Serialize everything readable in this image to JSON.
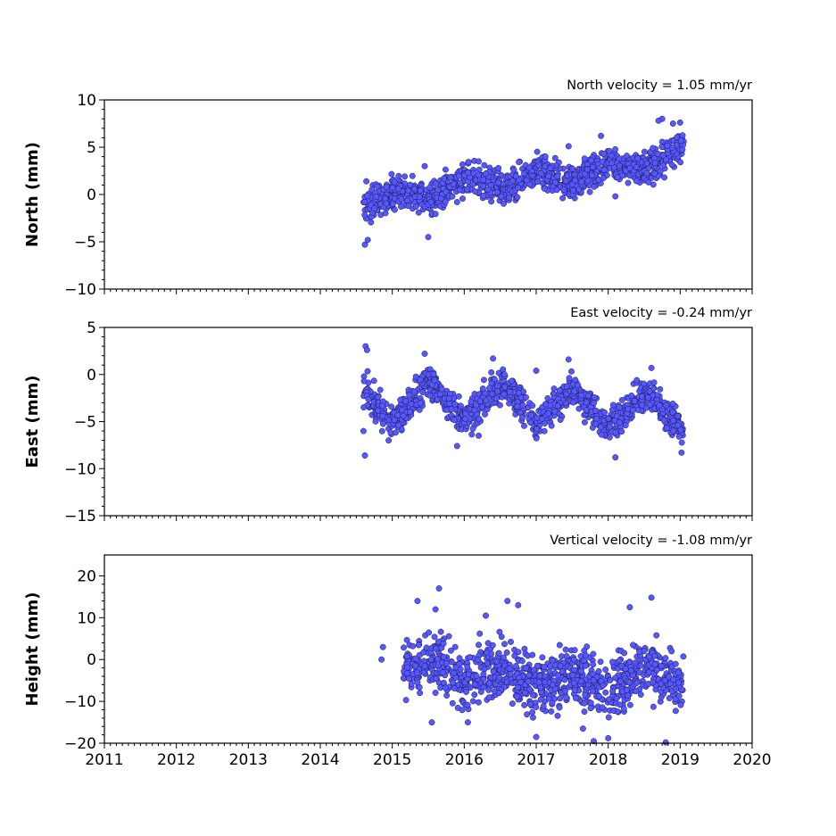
{
  "chart_data": [
    {
      "type": "scatter",
      "id": "north",
      "annotation": "North velocity = 1.05 mm/yr",
      "ylabel": "North (mm)",
      "xlim": [
        2011,
        2020
      ],
      "ylim": [
        -10,
        10
      ],
      "yticks": [
        -10,
        -5,
        0,
        5,
        10
      ],
      "ytick_labels": [
        "−10",
        "−5",
        "0",
        "5",
        "10"
      ],
      "velocity_mm_per_yr": 1.05,
      "color": "#5757ff",
      "segments": [
        {
          "x": [
            2014.6,
            2015.0
          ],
          "y": [
            -1.5,
            0.3
          ]
        },
        {
          "x": [
            2015.0,
            2015.6
          ],
          "y": [
            0.3,
            -0.3
          ]
        },
        {
          "x": [
            2015.6,
            2016.0
          ],
          "y": [
            -0.3,
            1.8
          ]
        },
        {
          "x": [
            2016.0,
            2016.6
          ],
          "y": [
            1.8,
            0.6
          ]
        },
        {
          "x": [
            2016.6,
            2017.0
          ],
          "y": [
            0.6,
            2.5
          ]
        },
        {
          "x": [
            2017.0,
            2017.5
          ],
          "y": [
            2.5,
            1.2
          ]
        },
        {
          "x": [
            2017.5,
            2018.0
          ],
          "y": [
            1.2,
            3.3
          ]
        },
        {
          "x": [
            2018.0,
            2018.5
          ],
          "y": [
            3.3,
            2.6
          ]
        },
        {
          "x": [
            2018.5,
            2019.05
          ],
          "y": [
            2.6,
            5.3
          ]
        }
      ],
      "noise": 1.1,
      "outliers": [
        {
          "x": 2014.62,
          "y": -5.3
        },
        {
          "x": 2014.66,
          "y": -4.8
        },
        {
          "x": 2014.64,
          "y": 1.4
        },
        {
          "x": 2015.5,
          "y": -4.5
        },
        {
          "x": 2015.45,
          "y": 3.0
        },
        {
          "x": 2017.45,
          "y": 5.1
        },
        {
          "x": 2017.9,
          "y": 6.2
        },
        {
          "x": 2018.1,
          "y": -0.2
        },
        {
          "x": 2018.75,
          "y": 8.0
        },
        {
          "x": 2018.7,
          "y": 7.8
        },
        {
          "x": 2018.9,
          "y": 7.5
        },
        {
          "x": 2019.0,
          "y": 7.6
        },
        {
          "x": 2018.78,
          "y": 1.8
        },
        {
          "x": 2016.2,
          "y": 3.5
        }
      ]
    },
    {
      "type": "scatter",
      "id": "east",
      "annotation": "East velocity = -0.24 mm/yr",
      "ylabel": "East (mm)",
      "xlim": [
        2011,
        2020
      ],
      "ylim": [
        -15,
        5
      ],
      "yticks": [
        -15,
        -10,
        -5,
        0,
        5
      ],
      "ytick_labels": [
        "−15",
        "−10",
        "−5",
        "0",
        "5"
      ],
      "velocity_mm_per_yr": -0.24,
      "color": "#5757ff",
      "segments": [
        {
          "x": [
            2014.6,
            2014.8
          ],
          "y": [
            -1.5,
            -3.5
          ]
        },
        {
          "x": [
            2014.8,
            2015.0
          ],
          "y": [
            -3.5,
            -5.0
          ]
        },
        {
          "x": [
            2015.0,
            2015.5
          ],
          "y": [
            -5.0,
            -0.8
          ]
        },
        {
          "x": [
            2015.5,
            2016.0
          ],
          "y": [
            -0.8,
            -5.0
          ]
        },
        {
          "x": [
            2016.0,
            2016.55
          ],
          "y": [
            -5.0,
            -0.8
          ]
        },
        {
          "x": [
            2016.55,
            2017.0
          ],
          "y": [
            -0.8,
            -5.2
          ]
        },
        {
          "x": [
            2017.0,
            2017.5
          ],
          "y": [
            -5.2,
            -1.5
          ]
        },
        {
          "x": [
            2017.5,
            2018.0
          ],
          "y": [
            -1.5,
            -5.5
          ]
        },
        {
          "x": [
            2018.0,
            2018.55
          ],
          "y": [
            -5.5,
            -2.0
          ]
        },
        {
          "x": [
            2018.55,
            2019.05
          ],
          "y": [
            -2.0,
            -6.0
          ]
        }
      ],
      "noise": 1.1,
      "outliers": [
        {
          "x": 2014.63,
          "y": 3.0
        },
        {
          "x": 2014.65,
          "y": 2.6
        },
        {
          "x": 2014.62,
          "y": -8.6
        },
        {
          "x": 2014.6,
          "y": -6.0
        },
        {
          "x": 2015.45,
          "y": 2.2
        },
        {
          "x": 2016.4,
          "y": 1.7
        },
        {
          "x": 2017.45,
          "y": 1.6
        },
        {
          "x": 2017.0,
          "y": 0.4
        },
        {
          "x": 2018.6,
          "y": 0.7
        },
        {
          "x": 2018.1,
          "y": -8.8
        },
        {
          "x": 2015.9,
          "y": -7.6
        },
        {
          "x": 2016.2,
          "y": -6.5
        },
        {
          "x": 2019.02,
          "y": -8.3
        },
        {
          "x": 2014.95,
          "y": -7.0
        }
      ]
    },
    {
      "type": "scatter",
      "id": "height",
      "annotation": "Vertical velocity = -1.08 mm/yr",
      "ylabel": "Height (mm)",
      "xlim": [
        2011,
        2020
      ],
      "ylim": [
        -20,
        25
      ],
      "yticks": [
        -20,
        -10,
        0,
        10,
        20
      ],
      "ytick_labels": [
        "−20",
        "−10",
        "0",
        "10",
        "20"
      ],
      "xticks": [
        2011,
        2012,
        2013,
        2014,
        2015,
        2016,
        2017,
        2018,
        2019,
        2020
      ],
      "xtick_labels": [
        "2011",
        "2012",
        "2013",
        "2014",
        "2015",
        "2016",
        "2017",
        "2018",
        "2019",
        "2020"
      ],
      "velocity_mm_per_yr": -1.08,
      "color": "#5757ff",
      "segments": [
        {
          "x": [
            2015.15,
            2015.6
          ],
          "y": [
            -2.0,
            -1.0
          ]
        },
        {
          "x": [
            2015.6,
            2016.0
          ],
          "y": [
            -1.0,
            -5.0
          ]
        },
        {
          "x": [
            2016.0,
            2016.6
          ],
          "y": [
            -5.0,
            -2.0
          ]
        },
        {
          "x": [
            2016.6,
            2017.0
          ],
          "y": [
            -2.0,
            -6.5
          ]
        },
        {
          "x": [
            2017.0,
            2017.5
          ],
          "y": [
            -6.5,
            -3.0
          ]
        },
        {
          "x": [
            2017.5,
            2018.0
          ],
          "y": [
            -3.0,
            -8.0
          ]
        },
        {
          "x": [
            2018.0,
            2018.55
          ],
          "y": [
            -8.0,
            -1.0
          ]
        },
        {
          "x": [
            2018.55,
            2019.05
          ],
          "y": [
            -1.0,
            -7.0
          ]
        }
      ],
      "noise": 4.5,
      "outliers": [
        {
          "x": 2014.87,
          "y": 3.0
        },
        {
          "x": 2014.85,
          "y": 0.0
        },
        {
          "x": 2015.35,
          "y": 14.0
        },
        {
          "x": 2015.65,
          "y": 17.0
        },
        {
          "x": 2015.6,
          "y": 12.0
        },
        {
          "x": 2016.3,
          "y": 10.5
        },
        {
          "x": 2016.6,
          "y": 14.0
        },
        {
          "x": 2016.75,
          "y": 13.0
        },
        {
          "x": 2018.3,
          "y": 12.5
        },
        {
          "x": 2018.6,
          "y": 14.8
        },
        {
          "x": 2017.0,
          "y": -18.5
        },
        {
          "x": 2017.8,
          "y": -19.5
        },
        {
          "x": 2018.0,
          "y": -18.8
        },
        {
          "x": 2018.8,
          "y": -19.8
        },
        {
          "x": 2015.55,
          "y": -15.0
        },
        {
          "x": 2016.05,
          "y": -15.0
        },
        {
          "x": 2017.65,
          "y": -16.5
        }
      ]
    }
  ]
}
